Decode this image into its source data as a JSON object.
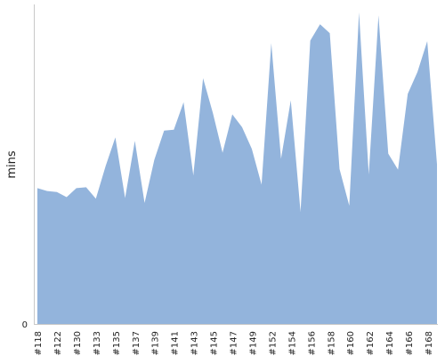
{
  "chart_data": {
    "type": "area",
    "ylabel": "mins",
    "y_tick_labels": [
      "0"
    ],
    "ylim": [
      0,
      100
    ],
    "x_tick_labels": [
      "#118",
      "#122",
      "#130",
      "#133",
      "#135",
      "#137",
      "#139",
      "#141",
      "#143",
      "#145",
      "#147",
      "#149",
      "#152",
      "#154",
      "#156",
      "#158",
      "#160",
      "#162",
      "#164",
      "#166",
      "#168"
    ],
    "values": [
      42.5,
      41.6,
      41.3,
      39.7,
      42.5,
      42.8,
      39.2,
      49.4,
      58.4,
      39.4,
      57.3,
      37.9,
      51.4,
      60.5,
      60.8,
      69.4,
      46.5,
      76.9,
      66.1,
      53.6,
      65.6,
      61.6,
      54.8,
      43.6,
      87.9,
      51.7,
      70.0,
      35.1,
      88.7,
      93.8,
      91.0,
      48.5,
      37.0,
      97.5,
      46.8,
      96.6,
      53.3,
      48.3,
      72.0,
      78.9,
      88.5,
      50.0
    ],
    "fill_color": "#93b4dc",
    "grid": false
  }
}
